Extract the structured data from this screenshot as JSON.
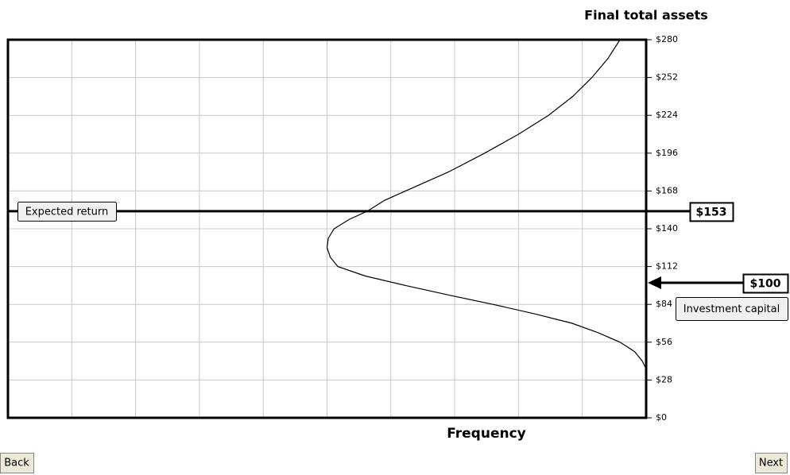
{
  "chart_data": {
    "type": "line",
    "y_axis_label": "Final total assets",
    "x_axis_label": "Frequency",
    "ylim": [
      0,
      280
    ],
    "yticks": [
      {
        "value": 0,
        "label": "$0"
      },
      {
        "value": 28,
        "label": "$28"
      },
      {
        "value": 56,
        "label": "$56"
      },
      {
        "value": 84,
        "label": "$84"
      },
      {
        "value": 112,
        "label": "$112"
      },
      {
        "value": 140,
        "label": "$140"
      },
      {
        "value": 168,
        "label": "$168"
      },
      {
        "value": 196,
        "label": "$196"
      },
      {
        "value": 224,
        "label": "$224"
      },
      {
        "value": 252,
        "label": "$252"
      },
      {
        "value": 280,
        "label": "$280"
      }
    ],
    "xlim": [
      10,
      0
    ],
    "xticks": [
      0,
      1,
      2,
      3,
      4,
      5,
      6,
      7,
      8,
      9,
      10
    ],
    "grid": true,
    "series": [
      {
        "color": "#000000",
        "y": [
          280,
          266,
          252,
          238,
          224,
          210,
          196,
          182,
          168,
          161,
          153,
          147,
          140,
          133,
          126,
          119,
          112,
          105,
          98,
          91,
          84,
          77,
          70,
          63,
          56,
          49,
          42,
          36
        ],
        "x": [
          0.41,
          0.6,
          0.85,
          1.15,
          1.53,
          2.0,
          2.53,
          3.1,
          3.77,
          4.1,
          4.37,
          4.65,
          4.89,
          4.98,
          5.0,
          4.95,
          4.83,
          4.4,
          3.77,
          3.1,
          2.4,
          1.75,
          1.16,
          0.75,
          0.41,
          0.18,
          0.06,
          0
        ]
      }
    ],
    "annotations": [
      {
        "value": 153,
        "label": "$153",
        "text": "Expected return"
      },
      {
        "value": 100,
        "label": "$100",
        "text": "Investment capital"
      }
    ]
  },
  "buttons": {
    "back": "Back",
    "next": "Next"
  }
}
